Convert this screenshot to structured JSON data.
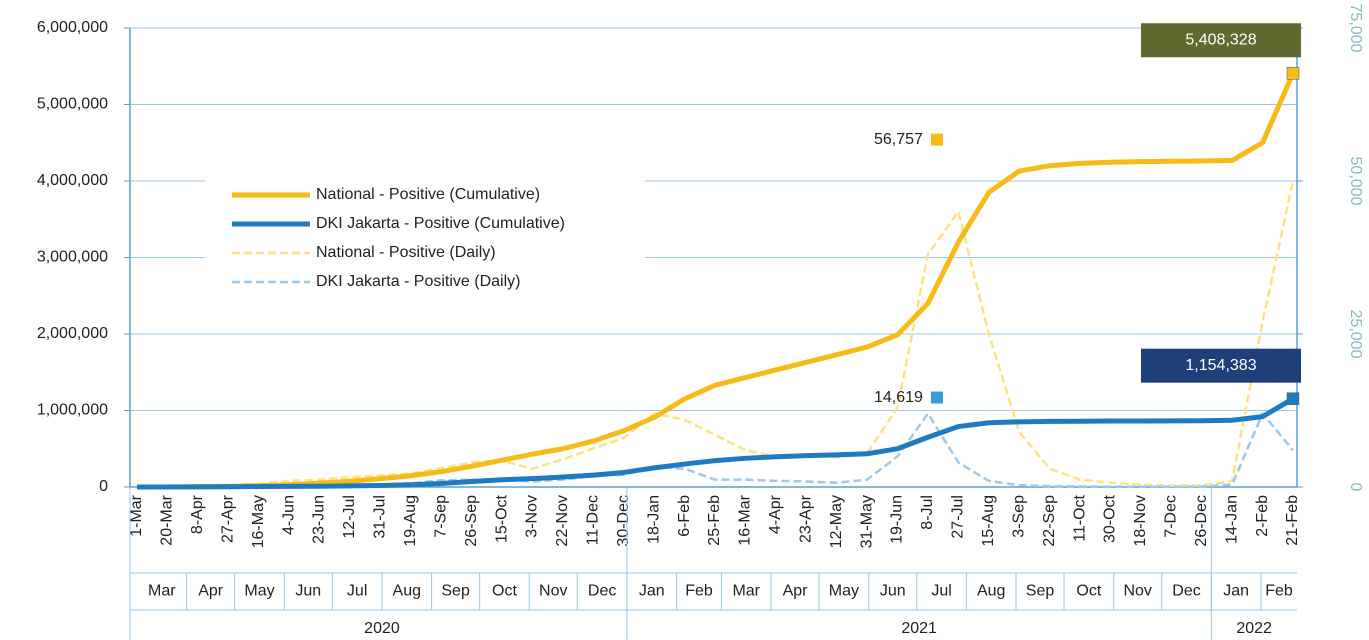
{
  "chart_data": {
    "type": "line",
    "categories": [
      "1-Mar",
      "20-Mar",
      "8-Apr",
      "27-Apr",
      "16-May",
      "4-Jun",
      "23-Jun",
      "12-Jul",
      "31-Jul",
      "19-Aug",
      "7-Sep",
      "26-Sep",
      "15-Oct",
      "3-Nov",
      "22-Nov",
      "11-Dec",
      "30-Dec",
      "18-Jan",
      "6-Feb",
      "25-Feb",
      "16-Mar",
      "4-Apr",
      "23-Apr",
      "12-May",
      "31-May",
      "19-Jun",
      "8-Jul",
      "27-Jul",
      "15-Aug",
      "3-Sep",
      "22-Sep",
      "11-Oct",
      "30-Oct",
      "18-Nov",
      "7-Dec",
      "26-Dec",
      "14-Jan",
      "2-Feb",
      "21-Feb"
    ],
    "months": [
      "Mar",
      "Apr",
      "May",
      "Jun",
      "Jul",
      "Aug",
      "Sep",
      "Oct",
      "Nov",
      "Dec",
      "Jan",
      "Feb",
      "Mar",
      "Apr",
      "May",
      "Jun",
      "Jul",
      "Aug",
      "Sep",
      "Oct",
      "Nov",
      "Dec",
      "Jan",
      "Feb"
    ],
    "years": [
      "2020",
      "2021",
      "2022"
    ],
    "series": [
      {
        "name": "National - Positive (Cumulative)",
        "color": "#f6bb18",
        "dashed": false,
        "values": [
          0,
          0,
          3000,
          9000,
          17000,
          30000,
          50000,
          75000,
          108000,
          147000,
          200000,
          270000,
          350000,
          430000,
          500000,
          600000,
          735000,
          910000,
          1150000,
          1330000,
          1430000,
          1530000,
          1630000,
          1730000,
          1830000,
          1990000,
          2400000,
          3200000,
          3850000,
          4130000,
          4200000,
          4230000,
          4245000,
          4253000,
          4258000,
          4262000,
          4270000,
          4500000,
          5408328
        ],
        "value_labels": [
          null,
          null,
          null,
          null,
          null,
          null,
          null,
          null,
          null,
          null,
          null,
          null,
          null,
          null,
          null,
          null,
          null,
          null,
          null,
          null,
          null,
          null,
          null,
          null,
          null,
          null,
          null,
          null,
          null,
          null,
          null,
          null,
          null,
          null,
          null,
          null,
          null,
          null,
          "5,408,328"
        ],
        "label_color": "#5f6b2e"
      },
      {
        "name": "DKI Jakarta - Positive (Cumulative)",
        "color": "#1f7bc1",
        "dashed": false,
        "values": [
          0,
          0,
          1000,
          4000,
          6000,
          8000,
          10000,
          14000,
          20000,
          30000,
          46000,
          72000,
          95000,
          110000,
          130000,
          155000,
          190000,
          250000,
          300000,
          345000,
          375000,
          395000,
          410000,
          420000,
          435000,
          500000,
          650000,
          790000,
          840000,
          852000,
          858000,
          860000,
          862000,
          863000,
          864000,
          866000,
          872000,
          920000,
          1154383
        ],
        "value_labels": [
          null,
          null,
          null,
          null,
          null,
          null,
          null,
          null,
          null,
          null,
          null,
          null,
          null,
          null,
          null,
          null,
          null,
          null,
          null,
          null,
          null,
          null,
          null,
          null,
          null,
          null,
          null,
          null,
          null,
          null,
          null,
          null,
          null,
          null,
          null,
          null,
          null,
          null,
          "1,154,383"
        ],
        "label_color": "#1f3f7a"
      },
      {
        "name": "National - Positive (Daily)",
        "color": "#fde27f",
        "dashed": true,
        "axis": "y2",
        "values": [
          0,
          60,
          300,
          300,
          500,
          1000,
          1200,
          1600,
          1900,
          2200,
          3100,
          4000,
          4300,
          3000,
          4500,
          6300,
          8000,
          12000,
          11000,
          8500,
          6000,
          5000,
          5300,
          4800,
          5500,
          13000,
          38000,
          45000,
          25000,
          9000,
          3000,
          1200,
          700,
          400,
          200,
          250,
          1000,
          27000,
          50000
        ]
      },
      {
        "name": "DKI Jakarta - Positive (Daily)",
        "color": "#9cc9ee",
        "dashed": true,
        "axis": "y2",
        "values": [
          0,
          20,
          100,
          100,
          100,
          150,
          200,
          350,
          450,
          600,
          1100,
          1200,
          1100,
          900,
          1200,
          1800,
          2000,
          3300,
          3000,
          1200,
          1200,
          1000,
          900,
          700,
          1200,
          5000,
          12000,
          4000,
          1000,
          300,
          150,
          80,
          60,
          40,
          30,
          60,
          400,
          12000,
          6000
        ]
      }
    ],
    "annotations": [
      {
        "text": "56,757",
        "value": 56757,
        "axis": "y2",
        "category": "8-Jul",
        "color": "#f6bb18"
      },
      {
        "text": "14,619",
        "value": 14619,
        "axis": "y2",
        "category": "8-Jul",
        "color": "#3a9ad9"
      }
    ],
    "ylim": [
      0,
      6000000
    ],
    "yticks": [
      0,
      {
        "value": 1000000,
        "label": "1,000,000"
      },
      {
        "value": 2000000,
        "label": "2,000,000"
      },
      {
        "value": 3000000,
        "label": "3,000,000"
      },
      {
        "value": 4000000,
        "label": "4,000,000"
      },
      {
        "value": 5000000,
        "label": "5,000,000"
      },
      {
        "value": 6000000,
        "label": "6,000,000"
      }
    ],
    "y2lim": [
      0,
      75000
    ],
    "y2ticks": [
      0,
      {
        "value": 25000,
        "label": "25,000"
      },
      {
        "value": 50000,
        "label": "50,000"
      },
      {
        "value": 75000,
        "label": "75,000"
      }
    ],
    "grid": true
  }
}
